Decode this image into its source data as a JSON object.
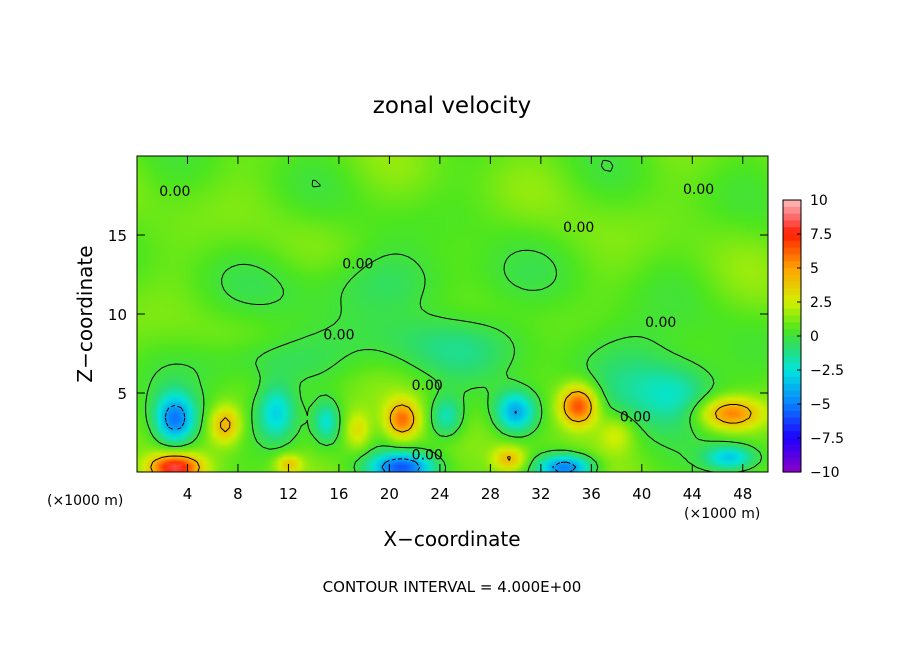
{
  "chart_data": {
    "type": "heatmap",
    "title": "zonal velocity",
    "xlabel": "X−coordinate",
    "ylabel": "Z−coordinate",
    "x_unit": "(×1000 m)",
    "y_unit": "(×1000 m)",
    "xlim": [
      0,
      50
    ],
    "ylim": [
      0,
      20
    ],
    "x_ticks": [
      4,
      8,
      12,
      16,
      20,
      24,
      28,
      32,
      36,
      40,
      44,
      48
    ],
    "x_tick_labels": [
      "4",
      "8",
      "12",
      "16",
      "20",
      "24",
      "28",
      "32",
      "36",
      "40",
      "44",
      "48"
    ],
    "y_ticks": [
      5,
      10,
      15
    ],
    "y_tick_labels": [
      "5",
      "10",
      "15"
    ],
    "colorbar": {
      "min": -10,
      "max": 10,
      "ticks": [
        10,
        7.5,
        5,
        2.5,
        0,
        -2.5,
        -5,
        -7.5,
        -10
      ],
      "tick_labels": [
        "10",
        "7.5",
        "5",
        "2.5",
        "0",
        "−2.5",
        "−5",
        "−7.5",
        "−10"
      ],
      "stops": [
        {
          "v": -10,
          "color": "#8c00c8"
        },
        {
          "v": -7.5,
          "color": "#1e00ff"
        },
        {
          "v": -5,
          "color": "#0a82ff"
        },
        {
          "v": -2.5,
          "color": "#00e6dc"
        },
        {
          "v": -1,
          "color": "#28dc78"
        },
        {
          "v": 0.5,
          "color": "#4ee61e"
        },
        {
          "v": 2.5,
          "color": "#d2f000"
        },
        {
          "v": 5,
          "color": "#ffa000"
        },
        {
          "v": 7.5,
          "color": "#ff1e00"
        },
        {
          "v": 8.5,
          "color": "#ff5a5a"
        },
        {
          "v": 10,
          "color": "#ffbebe"
        }
      ]
    },
    "contour_label": "0.00",
    "contour_labels_at": [
      [
        3,
        17.8
      ],
      [
        35,
        15.5
      ],
      [
        44.5,
        17.9
      ],
      [
        17.5,
        13.2
      ],
      [
        16,
        8.7
      ],
      [
        23,
        5.5
      ],
      [
        41.5,
        9.5
      ],
      [
        39.5,
        3.5
      ],
      [
        23,
        1.1
      ]
    ],
    "features": [
      {
        "x": 3,
        "z": 3.3,
        "value": -6,
        "rx": 1.6,
        "rz": 1.6
      },
      {
        "x": 3,
        "z": 0.3,
        "value": 7,
        "rx": 2,
        "rz": 0.8
      },
      {
        "x": 7,
        "z": 3,
        "value": 4,
        "rx": 1.2,
        "rz": 1.2
      },
      {
        "x": 11,
        "z": 3.8,
        "value": -3.5,
        "rx": 1.5,
        "rz": 1.8
      },
      {
        "x": 15,
        "z": 3.2,
        "value": -3,
        "rx": 1,
        "rz": 1.3
      },
      {
        "x": 17.5,
        "z": 2.6,
        "value": 2.5,
        "rx": 1,
        "rz": 1.2
      },
      {
        "x": 21,
        "z": 3.3,
        "value": 5,
        "rx": 1.3,
        "rz": 1.2
      },
      {
        "x": 21,
        "z": 0.3,
        "value": -6,
        "rx": 2.5,
        "rz": 0.9
      },
      {
        "x": 24.5,
        "z": 3.5,
        "value": -3,
        "rx": 1.3,
        "rz": 1.3
      },
      {
        "x": 30,
        "z": 3.8,
        "value": -5,
        "rx": 1.6,
        "rz": 1.3
      },
      {
        "x": 29.5,
        "z": 0.8,
        "value": 3.5,
        "rx": 1.3,
        "rz": 0.8
      },
      {
        "x": 35,
        "z": 4.2,
        "value": 6.5,
        "rx": 1.5,
        "rz": 1.3
      },
      {
        "x": 34,
        "z": 0.3,
        "value": -6,
        "rx": 2.2,
        "rz": 0.8
      },
      {
        "x": 38,
        "z": 2.5,
        "value": 2,
        "rx": 1.5,
        "rz": 1.2
      },
      {
        "x": 43,
        "z": 5,
        "value": -2.5,
        "rx": 3,
        "rz": 2
      },
      {
        "x": 47,
        "z": 3.7,
        "value": 5,
        "rx": 2.5,
        "rz": 1
      },
      {
        "x": 47,
        "z": 0.9,
        "value": -4,
        "rx": 2,
        "rz": 0.8
      },
      {
        "x": 12,
        "z": 0.5,
        "value": 3,
        "rx": 1,
        "rz": 0.6
      },
      {
        "x": 25,
        "z": 8,
        "value": -1.5,
        "rx": 8,
        "rz": 2
      },
      {
        "x": 10,
        "z": 7,
        "value": -1.5,
        "rx": 5,
        "rz": 1.5
      },
      {
        "x": 20,
        "z": 12,
        "value": -1.2,
        "rx": 10,
        "rz": 2
      },
      {
        "x": 40,
        "z": 6,
        "value": -1.8,
        "rx": 4,
        "rz": 3
      }
    ]
  },
  "footer": {
    "contour_interval": "CONTOUR INTERVAL = 4.000E+00"
  }
}
